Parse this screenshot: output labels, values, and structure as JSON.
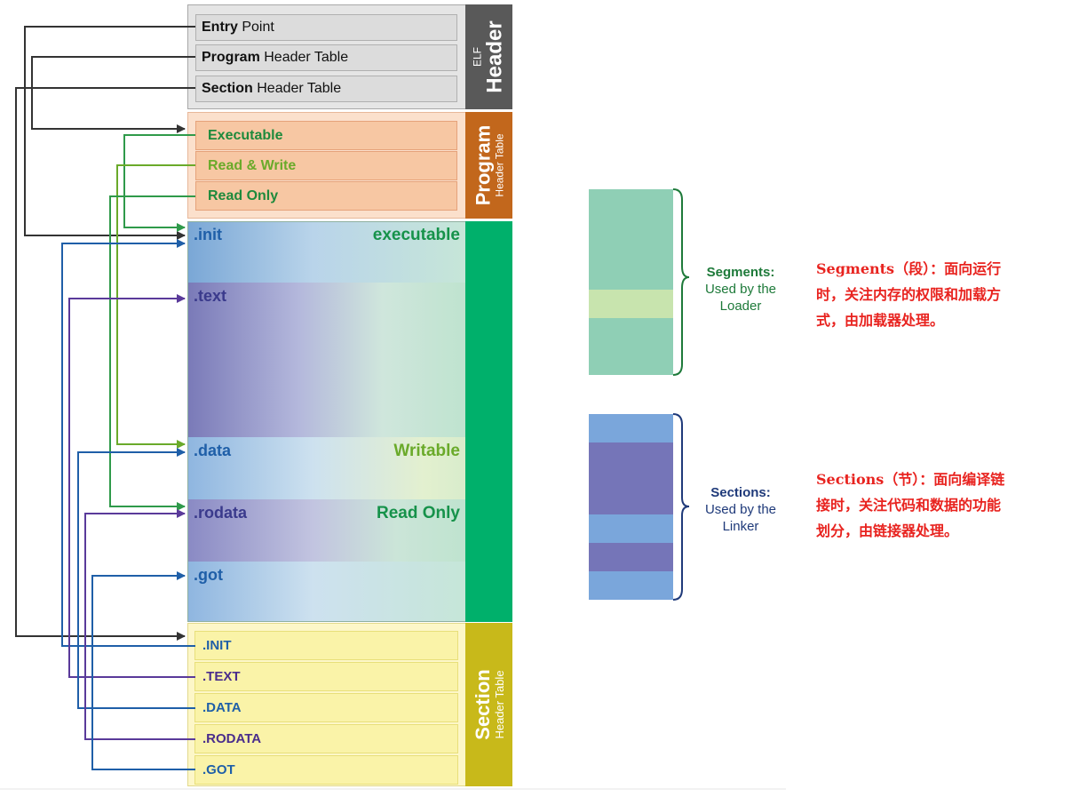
{
  "elf_header": {
    "band_small": "ELF",
    "band_big": "Header",
    "rows": [
      {
        "bold": "Entry",
        "rest": " Point"
      },
      {
        "bold": "Program",
        "rest": " Header Table"
      },
      {
        "bold": "Section",
        "rest": " Header Table"
      }
    ]
  },
  "program_header": {
    "band_big": "Program",
    "band_small": "Header Table",
    "rows": [
      {
        "label": "Executable",
        "color": "#1e8a3c"
      },
      {
        "label": "Read & Write",
        "color": "#6aaa2a"
      },
      {
        "label": "Read Only",
        "color": "#1e8a3c"
      }
    ]
  },
  "sections": [
    {
      "label": ".init",
      "color": "#1f5fa8",
      "right": "executable",
      "right_color": "#16924a"
    },
    {
      "label": ".text",
      "color": "#3a3a8c",
      "right": ""
    },
    {
      "label": ".data",
      "color": "#1f5fa8",
      "right": "Writable",
      "right_color": "#6aaa2a"
    },
    {
      "label": ".rodata",
      "color": "#3a3a8c",
      "right": "Read Only",
      "right_color": "#16924a"
    },
    {
      "label": ".got",
      "color": "#1f5fa8",
      "right": ""
    }
  ],
  "section_header": {
    "band_big": "Section",
    "band_small": "Header Table",
    "rows": [
      {
        "label": ".INIT",
        "color": "#1f5fa8"
      },
      {
        "label": ".TEXT",
        "color": "#4a2d8c"
      },
      {
        "label": ".DATA",
        "color": "#1f5fa8"
      },
      {
        "label": ".RODATA",
        "color": "#4a2d8c"
      },
      {
        "label": ".GOT",
        "color": "#1f5fa8"
      }
    ]
  },
  "legend": {
    "segments_title": "Segments:",
    "segments_line1": "Used by the",
    "segments_line2": "Loader",
    "sections_title": "Sections:",
    "sections_line1": "Used by the",
    "sections_line2": "Linker"
  },
  "notes": {
    "segments": [
      "Segments（段）：面向运行",
      "时，关注内存的权限和加载方",
      "式，由加载器处理。"
    ],
    "sections": [
      "Sections（节）：面向编译链",
      "接时，关注代码和数据的功能",
      "划分，由链接器处理。"
    ]
  },
  "colors": {
    "elf_band": "#595959",
    "program_band": "#c2671c",
    "segment_band": "#00b06b",
    "section_band": "#c8b91a",
    "arrow_black": "#333333",
    "arrow_green": "#2f9a4a",
    "arrow_blue": "#1f5fa8",
    "arrow_purple": "#5a3a9a"
  }
}
